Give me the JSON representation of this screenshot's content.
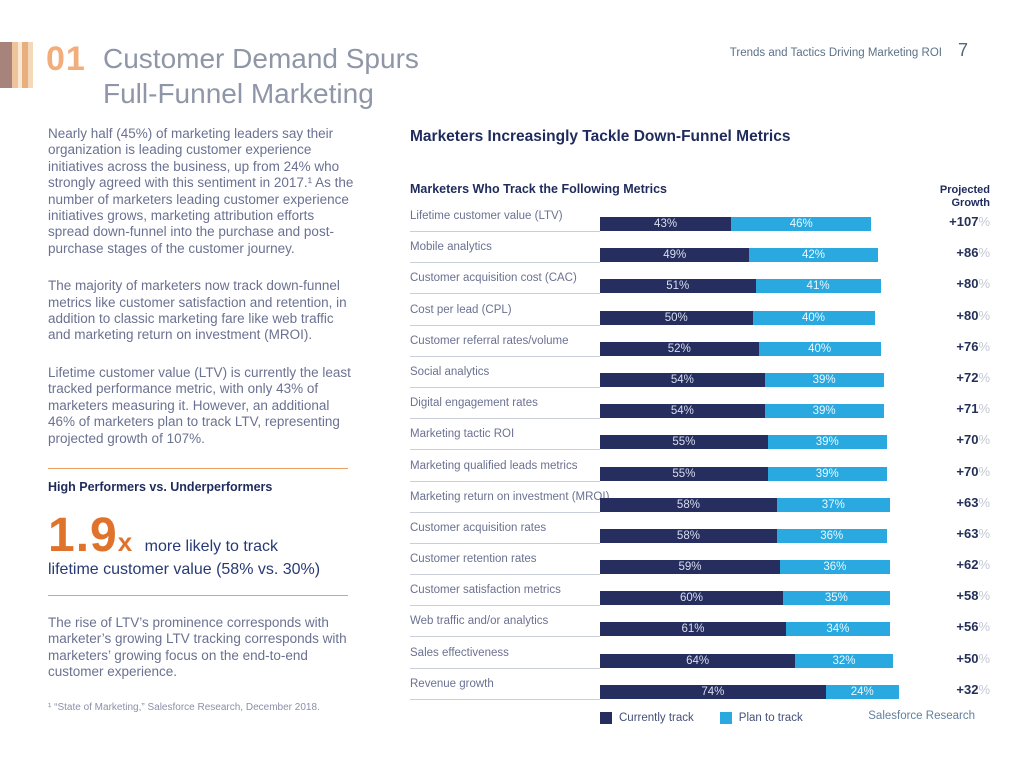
{
  "header": {
    "section_number": "01",
    "title_line1": "Customer Demand Spurs",
    "title_line2": "Full-Funnel Marketing",
    "doc_title": "Trends and Tactics Driving Marketing ROI",
    "page_number": "7"
  },
  "brand": {
    "logo_stripe_colors": [
      "#a7837c",
      "#eec49c",
      "#f8e9d7",
      "#e9ae7e",
      "#f3d8ba"
    ],
    "accent_orange": "#e0732c",
    "accent_orange_light": "#ef9f5f",
    "navy": "#1f2b5c"
  },
  "left_column": {
    "paragraphs": [
      "Nearly half (45%) of marketing leaders say their organization is leading customer experience initiatives across the business, up from 24% who strongly agreed with this sentiment in 2017.¹ As the number of marketers leading customer experience initiatives grows, marketing attribution efforts spread down-funnel into the purchase and post-purchase stages of the customer journey.",
      "The majority of marketers now track down-funnel metrics like customer satisfaction and retention, in addition to classic marketing fare like web traffic and marketing return on investment (MROI).",
      "Lifetime customer value (LTV) is currently the least tracked performance metric, with only 43% of marketers measuring it. However, an additional 46% of marketers plan to track LTV, representing projected growth of 107%."
    ],
    "callout": {
      "heading": "High Performers vs. Underperformers",
      "stat_value": "1.9",
      "stat_suffix": "x",
      "stat_line1": "more likely to track",
      "stat_line2": "lifetime customer value (58% vs. 30%)"
    },
    "closing_paragraph": "The rise of LTV’s prominence corresponds with marketer’s growing LTV tracking corresponds with marketers’ growing focus on the end-to-end customer experience.",
    "footnote": "¹ “State of Marketing,” Salesforce Research, December 2018."
  },
  "chart_data": {
    "type": "bar",
    "orientation": "horizontal-stacked",
    "title": "Marketers Increasingly Tackle Down-Funnel Metrics",
    "subtitle": "Marketers Who Track the Following Metrics",
    "growth_header": "Projected\nGrowth",
    "xlim": [
      0,
      100
    ],
    "unit": "%",
    "series": [
      {
        "name": "Currently track",
        "color": "#252e5e"
      },
      {
        "name": "Plan to track",
        "color": "#29a9e0"
      }
    ],
    "rows": [
      {
        "label": "Lifetime customer value (LTV)",
        "currently_track": 43,
        "plan_to_track": 46,
        "projected_growth": "+107"
      },
      {
        "label": "Mobile analytics",
        "currently_track": 49,
        "plan_to_track": 42,
        "projected_growth": "+86"
      },
      {
        "label": "Customer acquisition cost (CAC)",
        "currently_track": 51,
        "plan_to_track": 41,
        "projected_growth": "+80"
      },
      {
        "label": "Cost per lead (CPL)",
        "currently_track": 50,
        "plan_to_track": 40,
        "projected_growth": "+80"
      },
      {
        "label": "Customer referral rates/volume",
        "currently_track": 52,
        "plan_to_track": 40,
        "projected_growth": "+76"
      },
      {
        "label": "Social analytics",
        "currently_track": 54,
        "plan_to_track": 39,
        "projected_growth": "+72"
      },
      {
        "label": "Digital engagement rates",
        "currently_track": 54,
        "plan_to_track": 39,
        "projected_growth": "+71"
      },
      {
        "label": "Marketing tactic ROI",
        "currently_track": 55,
        "plan_to_track": 39,
        "projected_growth": "+70"
      },
      {
        "label": "Marketing qualified leads metrics",
        "currently_track": 55,
        "plan_to_track": 39,
        "projected_growth": "+70"
      },
      {
        "label": "Marketing return on investment (MROI)",
        "currently_track": 58,
        "plan_to_track": 37,
        "projected_growth": "+63"
      },
      {
        "label": "Customer acquisition rates",
        "currently_track": 58,
        "plan_to_track": 36,
        "projected_growth": "+63"
      },
      {
        "label": "Customer retention rates",
        "currently_track": 59,
        "plan_to_track": 36,
        "projected_growth": "+62"
      },
      {
        "label": "Customer satisfaction metrics",
        "currently_track": 60,
        "plan_to_track": 35,
        "projected_growth": "+58"
      },
      {
        "label": "Web traffic and/or analytics",
        "currently_track": 61,
        "plan_to_track": 34,
        "projected_growth": "+56"
      },
      {
        "label": "Sales effectiveness",
        "currently_track": 64,
        "plan_to_track": 32,
        "projected_growth": "+50"
      },
      {
        "label": "Revenue growth",
        "currently_track": 74,
        "plan_to_track": 24,
        "projected_growth": "+32"
      }
    ],
    "legend": [
      {
        "label": "Currently track",
        "color": "#252e5e"
      },
      {
        "label": "Plan to track",
        "color": "#29a9e0"
      }
    ]
  },
  "footer": {
    "brand": "Salesforce Research"
  }
}
